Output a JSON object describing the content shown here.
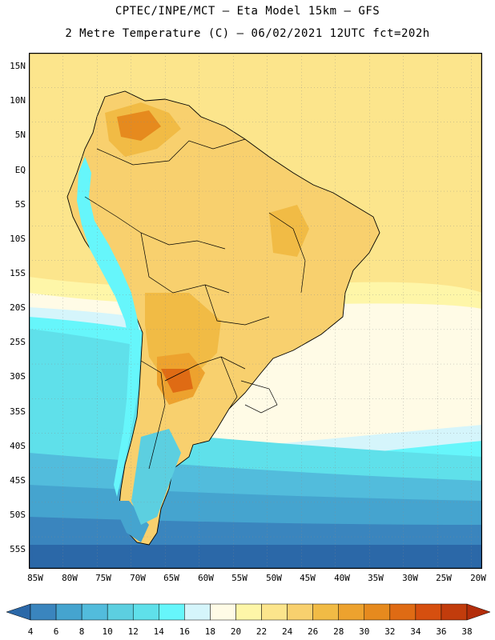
{
  "title": {
    "line1": "CPTEC/INPE/MCT —  Eta Model 15km — GFS",
    "line2": "2 Metre Temperature (C) — 06/02/2021 12UTC fct=202h"
  },
  "axes": {
    "lat_labels": [
      "15N",
      "10N",
      "5N",
      "EQ",
      "5S",
      "10S",
      "15S",
      "20S",
      "25S",
      "30S",
      "35S",
      "40S",
      "45S",
      "50S",
      "55S"
    ],
    "lon_labels": [
      "85W",
      "80W",
      "75W",
      "70W",
      "65W",
      "60W",
      "55W",
      "50W",
      "45W",
      "40W",
      "35W",
      "30W",
      "25W",
      "20W"
    ]
  },
  "colorbar": {
    "labels": [
      "4",
      "6",
      "8",
      "10",
      "12",
      "14",
      "16",
      "18",
      "20",
      "22",
      "24",
      "26",
      "28",
      "30",
      "32",
      "34",
      "36",
      "38"
    ],
    "colors": [
      "#2b68a8",
      "#3a85be",
      "#45a4cf",
      "#52bcdc",
      "#5ccfe0",
      "#5fe0ea",
      "#66f6fb",
      "#d5f5fb",
      "#fffbe6",
      "#fef6a8",
      "#fce58c",
      "#f8d06e",
      "#f1bb45",
      "#eda22e",
      "#e68a1e",
      "#df6b14",
      "#d64f0f",
      "#c23c0c",
      "#b32d0a"
    ]
  }
}
